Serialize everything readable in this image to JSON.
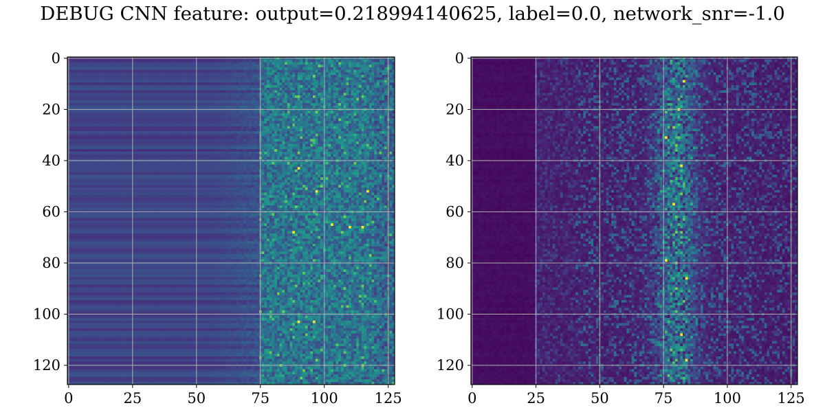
{
  "figure": {
    "title": "DEBUG CNN feature: output=0.218994140625, label=0.0, network_snr=-1.0"
  },
  "colormap": {
    "name": "viridis",
    "stops": [
      "#440154",
      "#482878",
      "#3e4989",
      "#31688e",
      "#26828e",
      "#1f9e89",
      "#35b779",
      "#6ece58",
      "#b5de2b",
      "#fde725"
    ]
  },
  "chart_data": [
    {
      "type": "heatmap",
      "panel": "left",
      "title": "",
      "xlabel": "",
      "ylabel": "",
      "rows": 128,
      "cols": 128,
      "xlim": [
        0,
        128
      ],
      "ylim": [
        128,
        0
      ],
      "xticks": [
        0,
        25,
        50,
        75,
        100,
        125
      ],
      "yticks": [
        0,
        20,
        40,
        60,
        80,
        100,
        120
      ],
      "grid": true,
      "description_values": {
        "background_level": 0.22,
        "column_band_bright_start": 55,
        "noisy_region_start": 75,
        "row_stripes": true,
        "hot_pixels": [
          [
            43,
            90
          ],
          [
            52,
            97
          ],
          [
            52,
            117
          ],
          [
            65,
            103
          ],
          [
            66,
            110
          ],
          [
            66,
            115
          ],
          [
            68,
            88
          ],
          [
            103,
            90
          ],
          [
            103,
            96
          ]
        ]
      }
    },
    {
      "type": "heatmap",
      "panel": "right",
      "title": "",
      "xlabel": "",
      "ylabel": "",
      "rows": 128,
      "cols": 128,
      "xlim": [
        0,
        128
      ],
      "ylim": [
        128,
        0
      ],
      "xticks": [
        0,
        25,
        50,
        75,
        100,
        125
      ],
      "yticks": [
        0,
        20,
        40,
        60,
        80,
        100,
        120
      ],
      "grid": true,
      "description_values": {
        "background_level": 0.02,
        "active_region_start": 25,
        "ridge_center_column": 80,
        "hot_pixels": [
          [
            9,
            83
          ],
          [
            20,
            81
          ],
          [
            31,
            76
          ],
          [
            42,
            82
          ],
          [
            57,
            79
          ],
          [
            79,
            76
          ],
          [
            86,
            84
          ],
          [
            108,
            82
          ],
          [
            118,
            84
          ]
        ]
      }
    }
  ]
}
